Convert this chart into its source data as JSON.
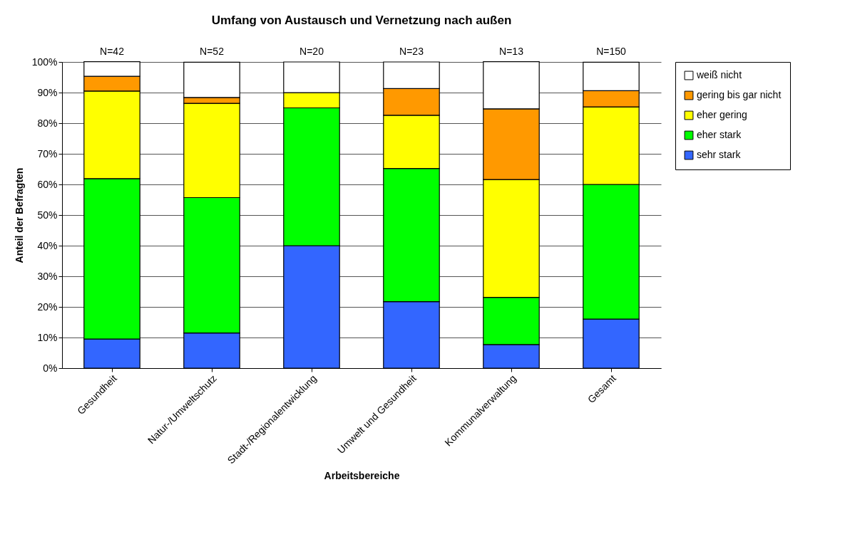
{
  "chart_data": {
    "type": "bar",
    "stacked": true,
    "title": "Umfang von Austausch und Vernetzung nach außen",
    "xlabel": "Arbeitsbereiche",
    "ylabel": "Anteil der Befragten",
    "categories": [
      "Gesundheit",
      "Natur-/Umweltschutz",
      "Stadt-/Regionalentwicklung",
      "Umwelt und Gesundheit",
      "Kommunalverwaltung",
      "Gesamt"
    ],
    "series": [
      {
        "name": "sehr stark",
        "color": "#3366ff",
        "values": [
          9.5,
          11.5,
          40,
          21.7,
          7.7,
          16
        ]
      },
      {
        "name": "eher stark",
        "color": "#00ff00",
        "values": [
          52.4,
          44.2,
          45,
          43.5,
          15.4,
          44
        ]
      },
      {
        "name": "eher gering",
        "color": "#ffff00",
        "values": [
          28.6,
          30.8,
          5,
          17.4,
          38.5,
          25.3
        ]
      },
      {
        "name": "gering bis gar nicht",
        "color": "#ff9900",
        "values": [
          4.8,
          1.9,
          0,
          8.7,
          23.1,
          5.3
        ]
      },
      {
        "name": "weiß nicht",
        "color": "#ffffff",
        "values": [
          4.8,
          11.5,
          10,
          8.7,
          15.4,
          9.3
        ]
      }
    ],
    "ylim": [
      0,
      100
    ],
    "yticks": [
      {
        "value": 0,
        "label": "0%"
      },
      {
        "value": 10,
        "label": "10%"
      },
      {
        "value": 20,
        "label": "20%"
      },
      {
        "value": 30,
        "label": "30%"
      },
      {
        "value": 40,
        "label": "40%"
      },
      {
        "value": 50,
        "label": "50%"
      },
      {
        "value": 60,
        "label": "60%"
      },
      {
        "value": 70,
        "label": "70%"
      },
      {
        "value": 80,
        "label": "80%"
      },
      {
        "value": 90,
        "label": "90%"
      },
      {
        "value": 100,
        "label": "100%"
      }
    ],
    "grid": "y",
    "legend": "right",
    "annotations": [
      {
        "text": "N=42",
        "x": "Gesundheit",
        "y": 100
      },
      {
        "text": "N=52",
        "x": "Natur-/Umweltschutz",
        "y": 100
      },
      {
        "text": "N=20",
        "x": "Stadt-/Regionalentwicklung",
        "y": 100
      },
      {
        "text": "N=23",
        "x": "Umwelt und Gesundheit",
        "y": 100
      },
      {
        "text": "N=13",
        "x": "Kommunalverwaltung",
        "y": 100
      },
      {
        "text": "N=150",
        "x": "Gesamt",
        "y": 100
      }
    ]
  }
}
